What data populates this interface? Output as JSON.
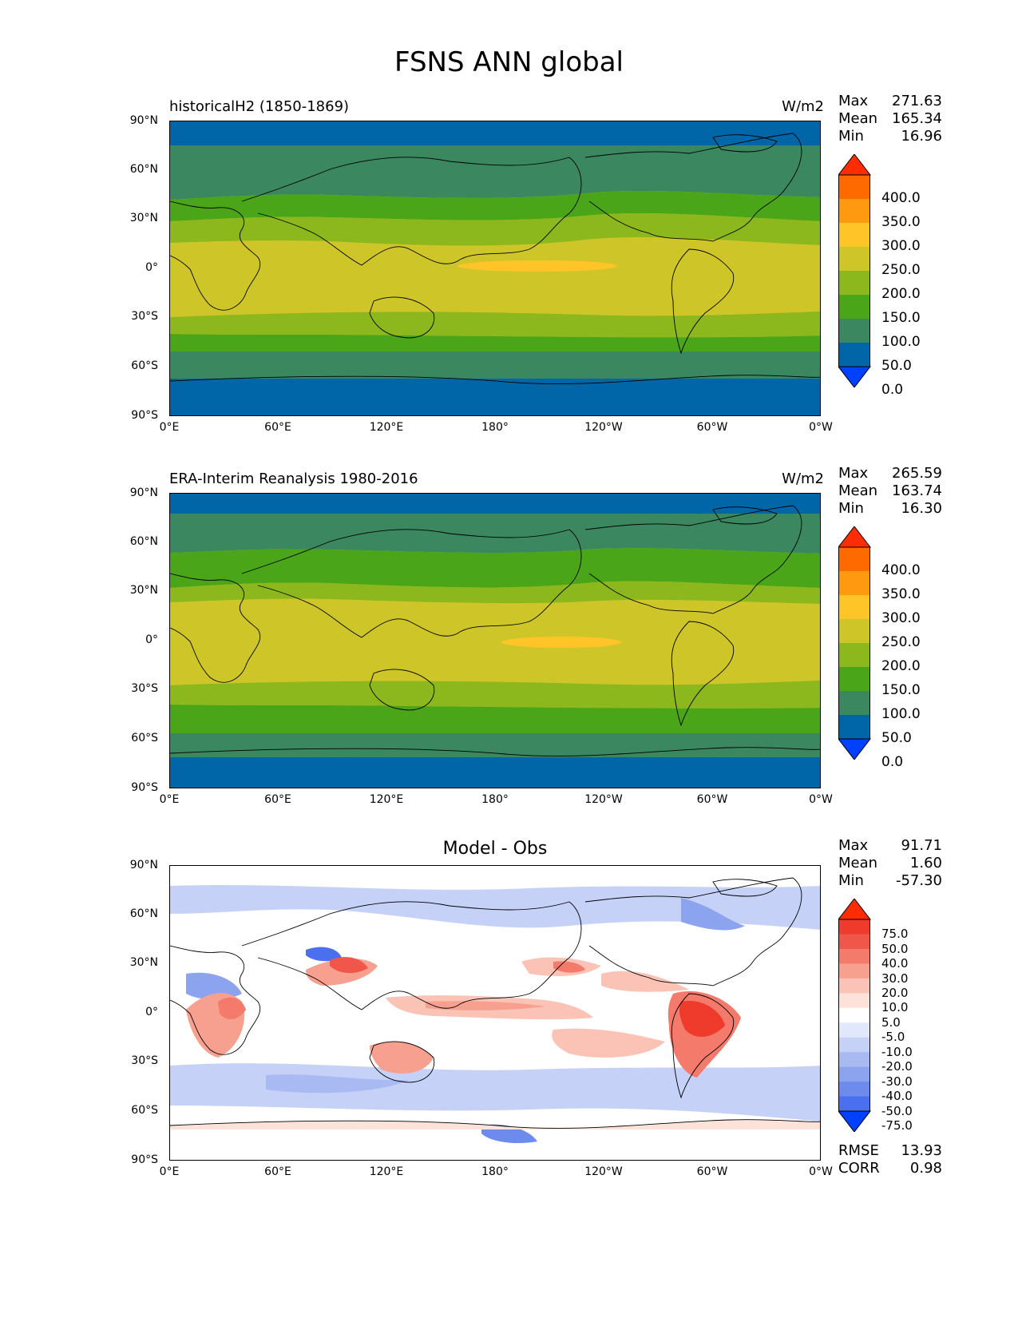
{
  "figure": {
    "title": "FSNS ANN global"
  },
  "panels": [
    {
      "id": "test",
      "title_left": "historicalH2 (1850-1869)",
      "title_center": "",
      "units": "W/m2",
      "stats": {
        "max_label": "Max",
        "max": "271.63",
        "mean_label": "Mean",
        "mean": "165.34",
        "min_label": "Min",
        "min": "16.96"
      },
      "colorbar": {
        "labels": [
          "400.0",
          "350.0",
          "300.0",
          "250.0",
          "200.0",
          "150.0",
          "100.0",
          "50.0",
          "0.0"
        ],
        "colors": [
          "#ff2d00",
          "#ff6a00",
          "#ff9a10",
          "#ffc428",
          "#cec629",
          "#8cb71d",
          "#4aa518",
          "#3a8760",
          "#0066a8",
          "#0040ff"
        ]
      }
    },
    {
      "id": "ref",
      "title_left": "ERA-Interim Reanalysis 1980-2016",
      "title_center": "",
      "units": "W/m2",
      "stats": {
        "max_label": "Max",
        "max": "265.59",
        "mean_label": "Mean",
        "mean": "163.74",
        "min_label": "Min",
        "min": "16.30"
      },
      "colorbar": {
        "labels": [
          "400.0",
          "350.0",
          "300.0",
          "250.0",
          "200.0",
          "150.0",
          "100.0",
          "50.0",
          "0.0"
        ],
        "colors": [
          "#ff2d00",
          "#ff6a00",
          "#ff9a10",
          "#ffc428",
          "#cec629",
          "#8cb71d",
          "#4aa518",
          "#3a8760",
          "#0066a8",
          "#0040ff"
        ]
      }
    },
    {
      "id": "diff",
      "title_left": "",
      "title_center": "Model - Obs",
      "units": "",
      "stats": {
        "max_label": "Max",
        "max": "91.71",
        "mean_label": "Mean",
        "mean": "1.60",
        "min_label": "Min",
        "min": "-57.30"
      },
      "metrics": {
        "rmse_label": "RMSE",
        "rmse": "13.93",
        "corr_label": "CORR",
        "corr": "0.98"
      },
      "colorbar": {
        "labels": [
          "75.0",
          "50.0",
          "40.0",
          "30.0",
          "20.0",
          "10.0",
          "5.0",
          "-5.0",
          "-10.0",
          "-20.0",
          "-30.0",
          "-40.0",
          "-50.0",
          "-75.0"
        ],
        "colors": [
          "#ff2d00",
          "#ee3b2b",
          "#f1564a",
          "#f47a6b",
          "#f7a08f",
          "#fac3b6",
          "#fde2d9",
          "#ffffff",
          "#e2e8fb",
          "#c6d1f7",
          "#a9baf3",
          "#8ca3f0",
          "#6c8bed",
          "#4a70ef",
          "#0040ff"
        ]
      }
    }
  ],
  "axes": {
    "yticks": [
      "90°N",
      "60°N",
      "30°N",
      "0°",
      "30°S",
      "60°S",
      "90°S"
    ],
    "xticks": [
      "0°E",
      "60°E",
      "120°E",
      "180°",
      "120°W",
      "60°W",
      "0°W"
    ]
  },
  "legend": {
    "colors": {
      "cap_top": "#ff2d00",
      "cap_bottom": "#0040ff"
    }
  }
}
